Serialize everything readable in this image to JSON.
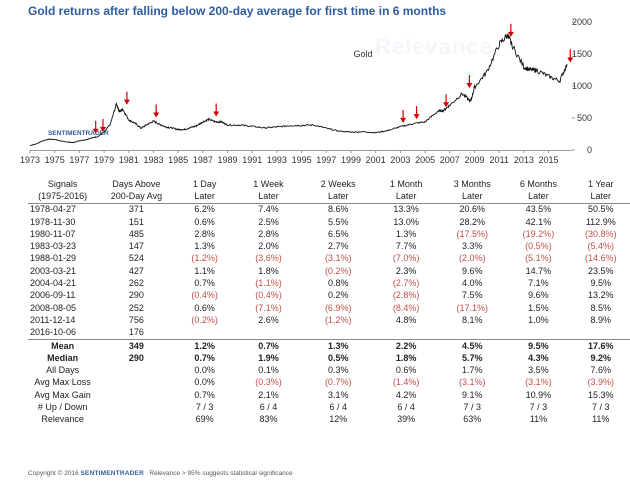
{
  "title": "Gold returns after falling below 200-day average for first time in 6 months",
  "watermark_text": "Relevance",
  "chart_watermark": "SENTIMENTRADER",
  "chart_data": {
    "type": "line",
    "series_name": "Gold",
    "x_ticks": [
      "1973",
      "1975",
      "1977",
      "1979",
      "1981",
      "1983",
      "1985",
      "1987",
      "1989",
      "1991",
      "1993",
      "1995",
      "1997",
      "1999",
      "2001",
      "2003",
      "2005",
      "2007",
      "2009",
      "2011",
      "2013",
      "2015"
    ],
    "y_ticks": [
      0,
      500,
      1000,
      1500,
      2000
    ],
    "xlim": [
      1973,
      2016.9
    ],
    "ylim": [
      0,
      2000
    ],
    "x": [
      1973,
      1973.5,
      1974,
      1974.5,
      1975,
      1975.5,
      1976,
      1976.5,
      1977,
      1977.5,
      1978,
      1978.5,
      1979,
      1979.5,
      1980,
      1980.25,
      1980.5,
      1981,
      1981.5,
      1982,
      1982.5,
      1983,
      1983.5,
      1984,
      1984.5,
      1985,
      1985.5,
      1986,
      1986.5,
      1987,
      1987.5,
      1988,
      1988.5,
      1989,
      1990,
      1991,
      1992,
      1993,
      1994,
      1995,
      1996,
      1997,
      1998,
      1999,
      2000,
      2001,
      2002,
      2003,
      2004,
      2005,
      2006,
      2006.5,
      2007,
      2008,
      2008.7,
      2009,
      2010,
      2011,
      2011.7,
      2012,
      2013,
      2013.5,
      2014,
      2015,
      2015.9,
      2016.5
    ],
    "values": [
      70,
      95,
      140,
      170,
      165,
      140,
      125,
      115,
      145,
      160,
      190,
      210,
      280,
      400,
      720,
      600,
      640,
      470,
      420,
      340,
      400,
      450,
      400,
      360,
      345,
      320,
      320,
      350,
      380,
      440,
      480,
      440,
      440,
      390,
      390,
      370,
      345,
      360,
      380,
      385,
      390,
      340,
      295,
      280,
      285,
      270,
      305,
      365,
      410,
      440,
      600,
      620,
      700,
      880,
      760,
      980,
      1220,
      1650,
      1800,
      1650,
      1300,
      1250,
      1250,
      1150,
      1080,
      1340
    ],
    "signal_x": [
      1978.32,
      1978.91,
      1980.85,
      1983.22,
      1988.08,
      2003.22,
      2004.31,
      2006.7,
      2008.59,
      2011.95,
      2016.76
    ],
    "signal_y": [
      175,
      205,
      630,
      430,
      445,
      345,
      405,
      590,
      890,
      1690,
      1290
    ]
  },
  "table": {
    "headers1": [
      "Signals",
      "Days Above",
      "1 Day",
      "1 Week",
      "2 Weeks",
      "1 Month",
      "3 Months",
      "6 Months",
      "1 Year"
    ],
    "headers2": [
      "(1975-2016)",
      "200-Day Avg",
      "Later",
      "Later",
      "Later",
      "Later",
      "Later",
      "Later",
      "Later"
    ],
    "rows": [
      [
        "1978-04-27",
        "371",
        "6.2%",
        "7.4%",
        "8.6%",
        "13.3%",
        "20.6%",
        "43.5%",
        "50.5%"
      ],
      [
        "1978-11-30",
        "151",
        "0.6%",
        "2.5%",
        "5.5%",
        "13.0%",
        "28.2%",
        "42.1%",
        "112.9%"
      ],
      [
        "1980-11-07",
        "485",
        "2.8%",
        "2.8%",
        "6.5%",
        "1.3%",
        "(17.5%)",
        "(19.2%)",
        "(30.8%)"
      ],
      [
        "1983-03-23",
        "147",
        "1.3%",
        "2.0%",
        "2.7%",
        "7.7%",
        "3.3%",
        "(0.5%)",
        "(5.4%)"
      ],
      [
        "1988-01-29",
        "524",
        "(1.2%)",
        "(3.6%)",
        "(3.1%)",
        "(7.0%)",
        "(2.0%)",
        "(5.1%)",
        "(14.6%)"
      ],
      [
        "2003-03-21",
        "427",
        "1.1%",
        "1.8%",
        "(0.2%)",
        "2.3%",
        "9.6%",
        "14.7%",
        "23.5%"
      ],
      [
        "2004-04-21",
        "262",
        "0.7%",
        "(1.1%)",
        "0.8%",
        "(2.7%)",
        "4.0%",
        "7.1%",
        "9.5%"
      ],
      [
        "2006-09-11",
        "290",
        "(0.4%)",
        "(0.4%)",
        "0.2%",
        "(2.8%)",
        "7.5%",
        "9.6%",
        "13.2%"
      ],
      [
        "2008-08-05",
        "252",
        "0.6%",
        "(7.1%)",
        "(6.9%)",
        "(8.4%)",
        "(17.1%)",
        "1.5%",
        "8.5%"
      ],
      [
        "2011-12-14",
        "756",
        "(0.2%)",
        "2.6%",
        "(1.2%)",
        "4.8%",
        "8.1%",
        "1.0%",
        "8.9%"
      ],
      [
        "2016-10-06",
        "176",
        "",
        "",
        "",
        "",
        "",
        "",
        ""
      ]
    ],
    "summary": [
      {
        "label": "Mean",
        "values": [
          "349",
          "1.2%",
          "0.7%",
          "1.3%",
          "2.2%",
          "4.5%",
          "9.5%",
          "17.6%"
        ],
        "bold": true
      },
      {
        "label": "Median",
        "values": [
          "290",
          "0.7%",
          "1.9%",
          "0.5%",
          "1.8%",
          "5.7%",
          "4.3%",
          "9.2%"
        ],
        "bold": true
      },
      {
        "label": "All Days",
        "values": [
          "",
          "0.0%",
          "0.1%",
          "0.3%",
          "0.6%",
          "1.7%",
          "3.5%",
          "7.6%"
        ],
        "bold": false
      },
      {
        "label": "Avg Max Loss",
        "values": [
          "",
          "0.0%",
          "(0.3%)",
          "(0.7%)",
          "(1.4%)",
          "(3.1%)",
          "(3.1%)",
          "(3.9%)"
        ],
        "bold": false
      },
      {
        "label": "Avg Max Gain",
        "values": [
          "",
          "0.7%",
          "2.1%",
          "3.1%",
          "4.2%",
          "9.1%",
          "10.9%",
          "15.3%"
        ],
        "bold": false
      },
      {
        "label": "# Up / Down",
        "values": [
          "",
          "7 / 3",
          "6 / 4",
          "6 / 4",
          "6 / 4",
          "7 / 3",
          "7 / 3",
          "7 / 3"
        ],
        "bold": false
      },
      {
        "label": "Relevance",
        "values": [
          "",
          "69%",
          "83%",
          "12%",
          "39%",
          "63%",
          "11%",
          "11%"
        ],
        "bold": false
      }
    ]
  },
  "footer": {
    "copyright": "Copyright © 2016",
    "brand": "SENTIMENTRADER",
    "note": "Relevance > 95% suggests statistical significance"
  }
}
